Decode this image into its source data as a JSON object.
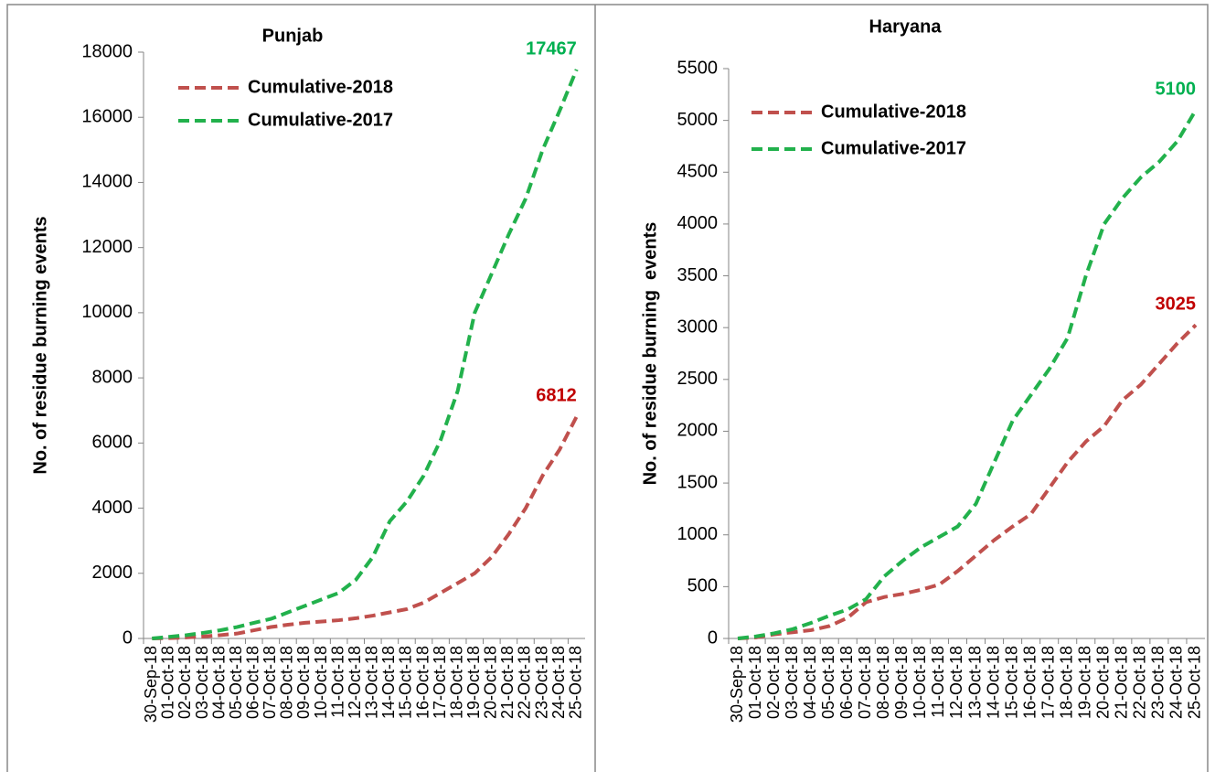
{
  "chart_data": [
    {
      "type": "line",
      "title": "Punjab",
      "y_label": "No. of residue burning events",
      "categories": [
        "30-Sep-18",
        "01-Oct-18",
        "02-Oct-18",
        "03-Oct-18",
        "04-Oct-18",
        "05-Oct-18",
        "06-Oct-18",
        "07-Oct-18",
        "08-Oct-18",
        "09-Oct-18",
        "10-Oct-18",
        "11-Oct-18",
        "12-Oct-18",
        "13-Oct-18",
        "14-Oct-18",
        "15-Oct-18",
        "16-Oct-18",
        "17-Oct-18",
        "18-Oct-18",
        "19-Oct-18",
        "20-Oct-18",
        "21-Oct-18",
        "22-Oct-18",
        "23-Oct-18",
        "24-Oct-18",
        "25-Oct-18"
      ],
      "series": [
        {
          "name": "Cumulative-2018",
          "color": "#c0504d",
          "label_color": "#c00000",
          "values": [
            0,
            10,
            30,
            60,
            100,
            150,
            250,
            350,
            420,
            480,
            520,
            560,
            620,
            700,
            800,
            900,
            1100,
            1400,
            1700,
            2000,
            2500,
            3200,
            4000,
            5000,
            5800,
            6812
          ]
        },
        {
          "name": "Cumulative-2017",
          "color": "#22b14c",
          "label_color": "#00b050",
          "values": [
            0,
            50,
            100,
            170,
            250,
            350,
            480,
            600,
            800,
            1000,
            1200,
            1400,
            1800,
            2500,
            3600,
            4200,
            5000,
            6100,
            7600,
            10000,
            11200,
            12400,
            13500,
            15000,
            16200,
            17467
          ]
        }
      ],
      "ylim": [
        0,
        18000
      ],
      "yticks": [
        0,
        2000,
        4000,
        6000,
        8000,
        10000,
        12000,
        14000,
        16000,
        18000
      ]
    },
    {
      "type": "line",
      "title": "Haryana",
      "y_label": "No. of residue burning  events",
      "categories": [
        "30-Sep-18",
        "01-Oct-18",
        "02-Oct-18",
        "03-Oct-18",
        "04-Oct-18",
        "05-Oct-18",
        "06-Oct-18",
        "07-Oct-18",
        "08-Oct-18",
        "09-Oct-18",
        "10-Oct-18",
        "11-Oct-18",
        "12-Oct-18",
        "13-Oct-18",
        "14-Oct-18",
        "15-Oct-18",
        "16-Oct-18",
        "17-Oct-18",
        "18-Oct-18",
        "19-Oct-18",
        "20-Oct-18",
        "21-Oct-18",
        "22-Oct-18",
        "23-Oct-18",
        "24-Oct-18",
        "25-Oct-18"
      ],
      "series": [
        {
          "name": "Cumulative-2018",
          "color": "#c0504d",
          "label_color": "#c00000",
          "values": [
            0,
            10,
            40,
            60,
            80,
            120,
            200,
            350,
            400,
            430,
            470,
            520,
            650,
            800,
            950,
            1080,
            1200,
            1450,
            1700,
            1900,
            2050,
            2300,
            2450,
            2650,
            2850,
            3025
          ]
        },
        {
          "name": "Cumulative-2017",
          "color": "#22b14c",
          "label_color": "#00b050",
          "values": [
            0,
            20,
            50,
            90,
            150,
            220,
            280,
            380,
            600,
            750,
            880,
            980,
            1080,
            1300,
            1700,
            2100,
            2350,
            2600,
            2900,
            3500,
            4000,
            4250,
            4450,
            4600,
            4800,
            5100
          ]
        }
      ],
      "ylim": [
        0,
        5500
      ],
      "yticks": [
        0,
        500,
        1000,
        1500,
        2000,
        2500,
        3000,
        3500,
        4000,
        4500,
        5000,
        5500
      ]
    }
  ]
}
